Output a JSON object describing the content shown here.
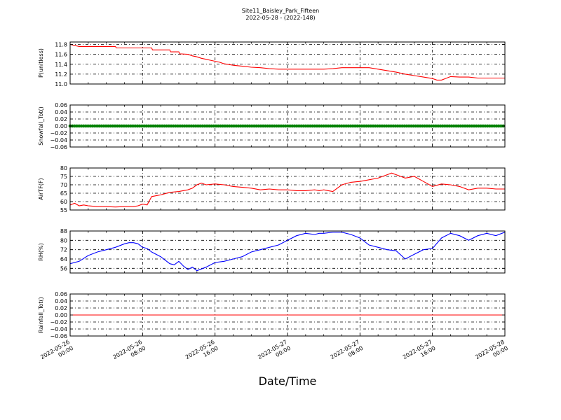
{
  "figure": {
    "title": "Site11_Baisley_Park_Fifteen",
    "subtitle": "2022-05-28 - (2022-148)",
    "xlabel": "Date/Time"
  },
  "colors": {
    "red": "#ff0000",
    "green": "#008000",
    "blue": "#0000ff"
  },
  "chart_data": [
    {
      "type": "line",
      "ylabel": "P(unitless)",
      "color": "#ff0000",
      "ylim": [
        11.0,
        11.85
      ],
      "yticks": [
        11.0,
        11.2,
        11.4,
        11.6,
        11.8
      ],
      "yticklabels": [
        "11.0",
        "11.2",
        "11.4",
        "11.6",
        "11.8"
      ],
      "xlim": [
        0,
        48
      ],
      "grid": true,
      "x": [
        0,
        0.5,
        1,
        2,
        3,
        4,
        5,
        5.1,
        6,
        7,
        8,
        9,
        9.1,
        10,
        11,
        11.1,
        12,
        12.1,
        13,
        13.5,
        14,
        14.5,
        15,
        15.5,
        16,
        16.5,
        17,
        18,
        19,
        20,
        21,
        22,
        23,
        24,
        25,
        26,
        27,
        27.1,
        28,
        29,
        30,
        31,
        32,
        33,
        34,
        35,
        36,
        37,
        38,
        39,
        40,
        40.5,
        41,
        42,
        43,
        44,
        45,
        46,
        47,
        48
      ],
      "y": [
        11.8,
        11.78,
        11.76,
        11.76,
        11.76,
        11.76,
        11.76,
        11.73,
        11.73,
        11.73,
        11.73,
        11.73,
        11.69,
        11.69,
        11.69,
        11.65,
        11.65,
        11.61,
        11.6,
        11.57,
        11.55,
        11.52,
        11.5,
        11.48,
        11.46,
        11.44,
        11.41,
        11.38,
        11.36,
        11.34,
        11.33,
        11.31,
        11.3,
        11.3,
        11.3,
        11.3,
        11.3,
        11.3,
        11.3,
        11.31,
        11.33,
        11.33,
        11.33,
        11.33,
        11.3,
        11.27,
        11.24,
        11.2,
        11.17,
        11.14,
        11.11,
        11.08,
        11.08,
        11.15,
        11.14,
        11.14,
        11.12,
        11.12,
        11.12,
        11.12
      ]
    },
    {
      "type": "line",
      "ylabel": "Snowfall_Tot()",
      "color": "#008000",
      "ylim": [
        -0.06,
        0.06
      ],
      "yticks": [
        -0.06,
        -0.04,
        -0.02,
        0.0,
        0.02,
        0.04,
        0.06
      ],
      "yticklabels": [
        "−0.06",
        "−0.04",
        "−0.02",
        "0.00",
        "0.02",
        "0.04",
        "0.06"
      ],
      "xlim": [
        0,
        48
      ],
      "grid": true,
      "markers": true,
      "x": [
        0,
        48
      ],
      "y": [
        0.0,
        0.0
      ]
    },
    {
      "type": "line",
      "ylabel": "AirTF(F)",
      "color": "#ff0000",
      "ylim": [
        55,
        80
      ],
      "yticks": [
        55,
        60,
        65,
        70,
        75,
        80
      ],
      "yticklabels": [
        "55",
        "60",
        "65",
        "70",
        "75",
        "80"
      ],
      "xlim": [
        0,
        48
      ],
      "grid": true,
      "x": [
        0,
        0.5,
        1,
        1.5,
        2,
        3,
        4,
        5,
        6,
        7,
        7.5,
        8,
        8.5,
        9,
        10,
        11,
        12,
        13,
        13.5,
        14,
        14.5,
        15,
        16,
        17,
        18,
        19,
        20,
        21,
        22,
        23,
        24,
        25,
        26,
        27,
        27.5,
        28,
        28.5,
        29,
        30,
        31,
        32,
        33,
        34,
        35,
        35.5,
        36,
        37,
        38,
        39,
        40,
        41,
        42,
        43,
        44,
        45,
        46,
        47,
        48
      ],
      "y": [
        58,
        59,
        57.5,
        58,
        57.5,
        57,
        57,
        56.8,
        57,
        57,
        57.5,
        58.5,
        58,
        63,
        64,
        65.5,
        66,
        67,
        68,
        70,
        71,
        70,
        70.5,
        70,
        69,
        68.5,
        68,
        67,
        67.5,
        67,
        67,
        66.5,
        66.5,
        67,
        66.5,
        67,
        66.5,
        66,
        70,
        71.5,
        72,
        73,
        74,
        76,
        77,
        76,
        74,
        75,
        72,
        69,
        70.5,
        70,
        69,
        67,
        68,
        68,
        67.5,
        67.5
      ]
    },
    {
      "type": "line",
      "ylabel": "RH(%)",
      "color": "#0000ff",
      "ylim": [
        52,
        88
      ],
      "yticks": [
        56,
        64,
        72,
        80,
        88
      ],
      "yticklabels": [
        "56",
        "64",
        "72",
        "80",
        "88"
      ],
      "xlim": [
        0,
        48
      ],
      "grid": true,
      "x": [
        0,
        1,
        2,
        3,
        4,
        5,
        6,
        6.5,
        7,
        7.5,
        8,
        8.5,
        9,
        10,
        11,
        11.5,
        12,
        12.5,
        13,
        13.5,
        14,
        15,
        16,
        17,
        18,
        19,
        20,
        21,
        22,
        23,
        24,
        25,
        26,
        27,
        27.5,
        28,
        29,
        30,
        31,
        32,
        33,
        34,
        35,
        36,
        37,
        38,
        39,
        40,
        41,
        42,
        43,
        44,
        45,
        46,
        47,
        48
      ],
      "y": [
        60,
        62,
        67,
        70,
        72,
        74,
        77,
        78,
        78,
        77,
        74,
        73,
        70,
        66,
        60,
        59,
        62,
        58,
        55,
        57,
        54,
        57,
        61,
        62,
        64,
        66,
        70,
        72,
        74,
        76,
        80,
        84,
        86,
        85,
        86,
        86,
        87,
        87,
        85,
        82,
        76,
        74,
        72,
        71,
        64,
        68,
        72,
        73,
        82,
        86,
        84,
        80,
        84,
        86,
        84,
        87
      ]
    },
    {
      "type": "line",
      "ylabel": "Rainfall_Tot()",
      "color": "#ff0000",
      "ylim": [
        -0.06,
        0.06
      ],
      "yticks": [
        -0.06,
        -0.04,
        -0.02,
        0.0,
        0.02,
        0.04,
        0.06
      ],
      "yticklabels": [
        "−0.06",
        "−0.04",
        "−0.02",
        "0.00",
        "0.02",
        "0.04",
        "0.06"
      ],
      "xlim": [
        0,
        48
      ],
      "grid": true,
      "x": [
        0,
        48
      ],
      "y": [
        0.0,
        0.0
      ],
      "xticks": [
        0,
        8,
        16,
        24,
        32,
        40,
        48
      ],
      "xticklabels": [
        [
          "2022-05-26",
          "00:00"
        ],
        [
          "2022-05-26",
          "08:00"
        ],
        [
          "2022-05-26",
          "16:00"
        ],
        [
          "2022-05-27",
          "00:00"
        ],
        [
          "2022-05-27",
          "08:00"
        ],
        [
          "2022-05-27",
          "16:00"
        ],
        [
          "2022-05-28",
          "00:00"
        ]
      ]
    }
  ]
}
